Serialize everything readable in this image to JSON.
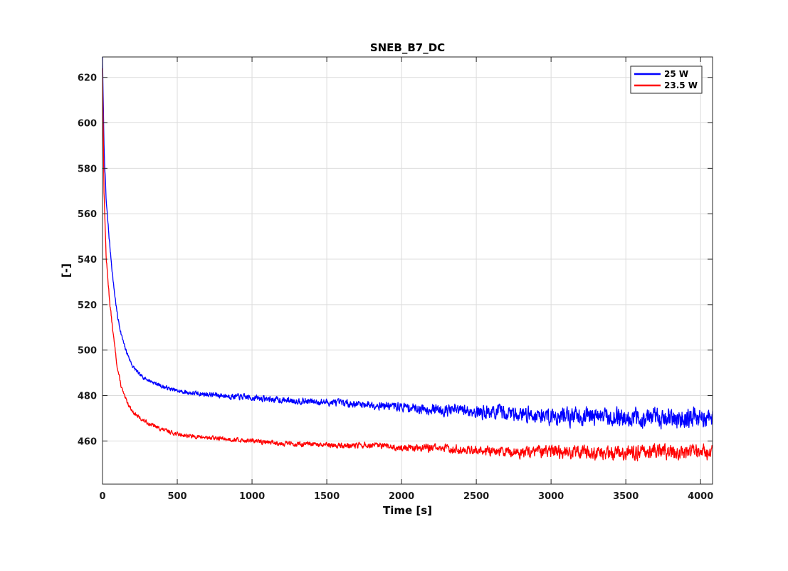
{
  "chart_data": {
    "type": "line",
    "title": "SNEB_B7_DC",
    "xlabel": "Time [s]",
    "ylabel": "[-]",
    "xlim": [
      0,
      4080
    ],
    "ylim": [
      441,
      629
    ],
    "xticks": [
      0,
      500,
      1000,
      1500,
      2000,
      2500,
      3000,
      3500,
      4000
    ],
    "yticks": [
      460,
      480,
      500,
      520,
      540,
      560,
      580,
      600,
      620
    ],
    "grid": true,
    "legend_position": "top-right",
    "series": [
      {
        "name": "25 W",
        "color": "#0000ff",
        "x": [
          0,
          10,
          25,
          50,
          75,
          100,
          125,
          150,
          175,
          200,
          250,
          300,
          400,
          500,
          600,
          800,
          1000,
          1200,
          1500,
          1800,
          2000,
          2200,
          2500,
          2800,
          3000,
          3300,
          3600,
          3800,
          4080
        ],
        "y": [
          629,
          590,
          565,
          545,
          528,
          515,
          507,
          501,
          497,
          493,
          489,
          487,
          484,
          482,
          481,
          480,
          479,
          478,
          477,
          476,
          475,
          474,
          473,
          472,
          471,
          471,
          470,
          470,
          470
        ],
        "noise": [
          0,
          2,
          2,
          1.5,
          1.5,
          1.5,
          1.2,
          1.2,
          1.2,
          1.2,
          1.2,
          1.2,
          1.3,
          1.3,
          1.5,
          1.8,
          2,
          2,
          2.2,
          2.5,
          3,
          3.5,
          4.5,
          5,
          6,
          6,
          6.5,
          6.5,
          7
        ],
        "seed": 7
      },
      {
        "name": "23.5 W",
        "color": "#ff0000",
        "x": [
          0,
          10,
          25,
          50,
          75,
          100,
          125,
          150,
          175,
          200,
          250,
          300,
          400,
          500,
          600,
          800,
          1000,
          1200,
          1500,
          1800,
          2000,
          2200,
          2500,
          2800,
          3000,
          3300,
          3600,
          3800,
          4080
        ],
        "y": [
          624,
          570,
          540,
          520,
          505,
          492,
          484,
          479,
          476,
          473,
          470,
          468,
          465,
          463,
          462,
          461,
          460,
          459,
          458,
          458,
          457,
          457,
          456,
          455,
          455,
          455,
          455,
          455,
          455
        ],
        "noise": [
          0,
          2,
          2,
          1.5,
          1.5,
          1.3,
          1.2,
          1.2,
          1.2,
          1.2,
          1.2,
          1.2,
          1.3,
          1.3,
          1.3,
          1.4,
          1.5,
          1.6,
          1.8,
          2,
          2.2,
          2.5,
          3,
          3.5,
          4,
          4.5,
          5,
          5,
          5
        ],
        "seed": 13
      }
    ]
  }
}
